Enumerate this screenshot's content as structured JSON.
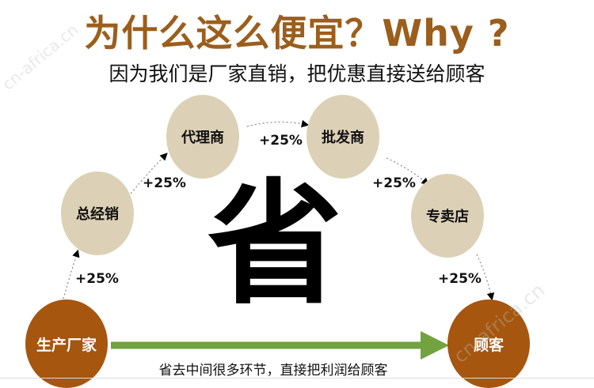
{
  "title": "为什么这么便宜？Why ?",
  "subtitle": "因为我们是厂家直销，把优惠直接送给顾客",
  "nodes": {
    "manufacturer": "生产厂家",
    "general_distributor": "总经销",
    "agent": "代理商",
    "wholesaler": "批发商",
    "store": "专卖店",
    "customer": "顾客"
  },
  "markups": [
    "+25%",
    "+25%",
    "+25%",
    "+25%",
    "+25%"
  ],
  "big_char": "省",
  "bottom_text": "省去中间很多环节，直接把利润给顾客",
  "watermark": "cn-africa.cn",
  "colors": {
    "title": "#9b5e1c",
    "brown_node": "#a6560f",
    "beige_node": "#dcd1b6",
    "arrow": "#72a340"
  }
}
